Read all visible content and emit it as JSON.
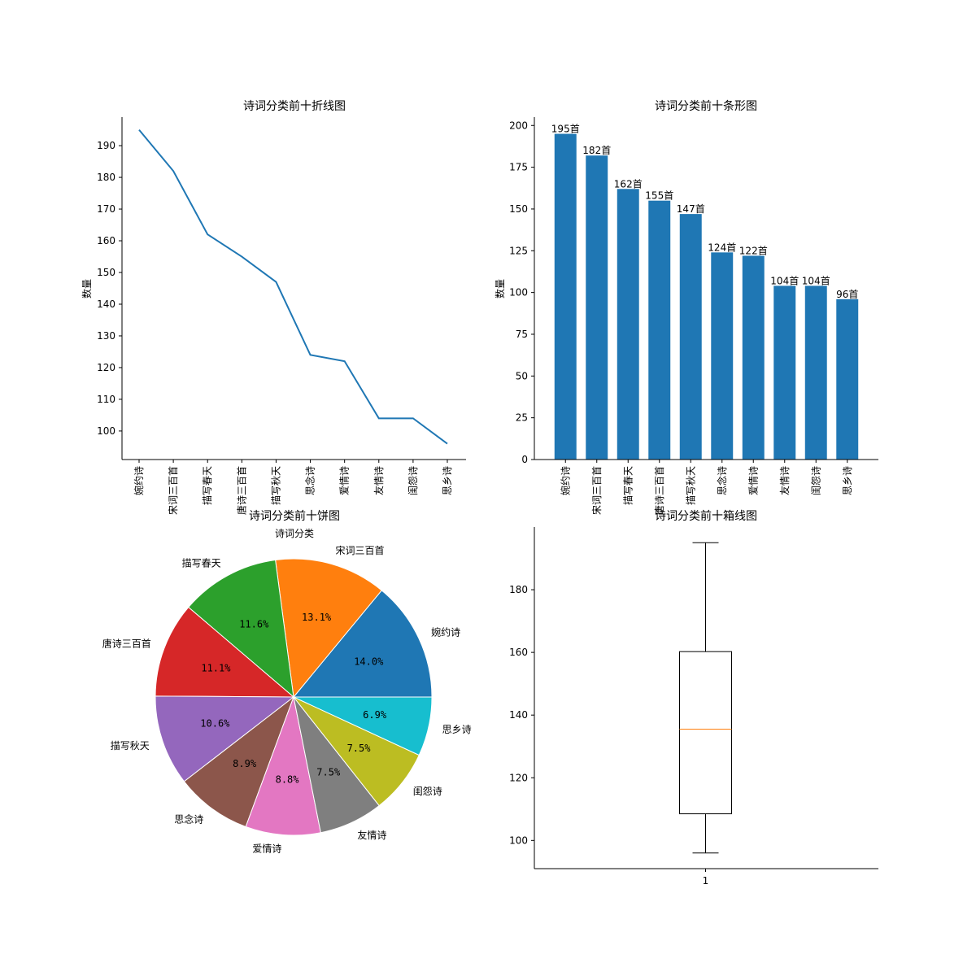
{
  "figure": {
    "background": "#ffffff"
  },
  "chart_data": [
    {
      "type": "line",
      "title": "诗词分类前十折线图",
      "xlabel": "诗词分类",
      "ylabel": "数量",
      "categories": [
        "婉约诗",
        "宋词三百首",
        "描写春天",
        "唐诗三百首",
        "描写秋天",
        "思念诗",
        "爱情诗",
        "友情诗",
        "闺怨诗",
        "思乡诗"
      ],
      "values": [
        195,
        182,
        162,
        155,
        147,
        124,
        122,
        104,
        104,
        96
      ],
      "yticks": [
        100,
        110,
        120,
        130,
        140,
        150,
        160,
        170,
        180,
        190
      ],
      "ylim": [
        91,
        199
      ],
      "color": "#1f77b4"
    },
    {
      "type": "bar",
      "title": "诗词分类前十条形图",
      "xlabel": "",
      "ylabel": "数量",
      "categories": [
        "婉约诗",
        "宋词三百首",
        "描写春天",
        "唐诗三百首",
        "描写秋天",
        "思念诗",
        "爱情诗",
        "友情诗",
        "闺怨诗",
        "思乡诗"
      ],
      "values": [
        195,
        182,
        162,
        155,
        147,
        124,
        122,
        104,
        104,
        96
      ],
      "value_labels": [
        "195首",
        "182首",
        "162首",
        "155首",
        "147首",
        "124首",
        "122首",
        "104首",
        "104首",
        "96首"
      ],
      "yticks": [
        0,
        25,
        50,
        75,
        100,
        125,
        150,
        175,
        200
      ],
      "ylim": [
        0,
        205
      ],
      "color": "#1f77b4"
    },
    {
      "type": "pie",
      "title": "诗词分类前十饼图",
      "labels": [
        "婉约诗",
        "宋词三百首",
        "描写春天",
        "唐诗三百首",
        "描写秋天",
        "思念诗",
        "爱情诗",
        "友情诗",
        "闺怨诗",
        "思乡诗"
      ],
      "values": [
        195,
        182,
        162,
        155,
        147,
        124,
        122,
        104,
        104,
        96
      ],
      "percent_labels": [
        "14.0%",
        "13.1%",
        "11.6%",
        "11.1%",
        "10.6%",
        "8.9%",
        "8.8%",
        "7.5%",
        "7.5%",
        "6.9%"
      ],
      "colors": [
        "#1f77b4",
        "#ff7f0e",
        "#2ca02c",
        "#d62728",
        "#9467bd",
        "#8c564b",
        "#e377c2",
        "#7f7f7f",
        "#bcbd22",
        "#17becf"
      ]
    },
    {
      "type": "box",
      "title": "诗词分类前十箱线图",
      "xticks": [
        "1"
      ],
      "whisker_low": 96,
      "q1": 108.5,
      "median": 135.5,
      "q3": 160.25,
      "whisker_high": 195,
      "yticks": [
        100,
        120,
        140,
        160,
        180
      ],
      "ylim": [
        91,
        200
      ],
      "median_color": "#ff7f0e"
    }
  ]
}
